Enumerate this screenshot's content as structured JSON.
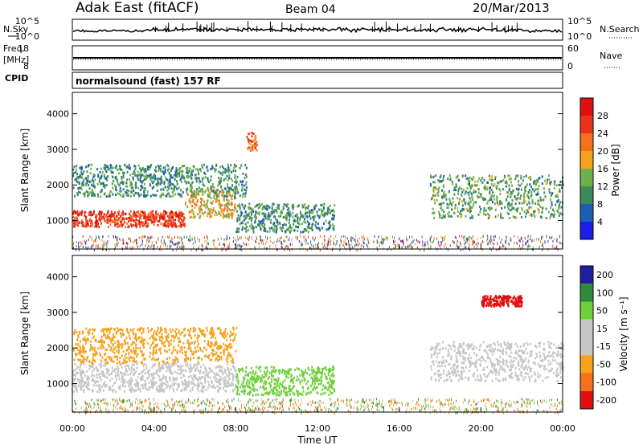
{
  "header": {
    "site": "Adak East (fitACF)",
    "beam": "Beam 04",
    "date": "20/Mar/2013"
  },
  "left_labels": {
    "nsky": "N.Sky",
    "freq": "Freq.",
    "freq_unit": "[MHz]",
    "cpid": "CPID"
  },
  "right_labels": {
    "nsearch": "N.Search",
    "nave": "Nave"
  },
  "noise_panel": {
    "left_top_tick": "10^5",
    "left_bottom_tick": "10^0",
    "right_top_tick": "10^5",
    "right_bottom_tick": "10^0"
  },
  "freq_panel": {
    "left_ticks": [
      "18",
      "8"
    ],
    "right_ticks": [
      "60",
      "0"
    ]
  },
  "cpid_text": "normalsound (fast) 157 RF",
  "colors": {
    "power": [
      "#1e1ee6",
      "#1c5fb0",
      "#3c8a5a",
      "#6fb04e",
      "#f5a21e",
      "#f5701e",
      "#e8321e",
      "#e01010"
    ],
    "velocity": [
      "#e01010",
      "#f5701e",
      "#f5a21e",
      "#c6c6c6",
      "#c6c6c6",
      "#6fcf3c",
      "#2f8a3a",
      "#1e1ea0"
    ]
  },
  "chart_data": [
    {
      "type": "heatmap",
      "name_hint": "power",
      "x": {
        "label": "",
        "ticks": [
          "00:00",
          "04:00",
          "08:00",
          "12:00",
          "16:00",
          "20:00",
          "00:00"
        ],
        "range": [
          0,
          24
        ],
        "unit": "hours UT"
      },
      "y": {
        "label": "Slant Range [km]",
        "ticks": [
          "1000",
          "2000",
          "3000",
          "4000"
        ],
        "range": [
          200,
          4600
        ]
      },
      "colorbar": {
        "label": "Power [dB]",
        "ticks": [
          "4",
          "8",
          "12",
          "16",
          "20",
          "24",
          "28"
        ],
        "range": [
          0,
          32
        ]
      },
      "features": [
        {
          "t": [
            0.0,
            5.5
          ],
          "range": [
            850,
            1300
          ],
          "level": 26
        },
        {
          "t": [
            5.5,
            8.0
          ],
          "range": [
            1100,
            1900
          ],
          "level": 18
        },
        {
          "t": [
            0.0,
            8.5
          ],
          "range": [
            1700,
            2600
          ],
          "level": 10
        },
        {
          "t": [
            8.0,
            12.8
          ],
          "range": [
            700,
            1500
          ],
          "level": 10
        },
        {
          "t": [
            17.5,
            24.0
          ],
          "range": [
            1100,
            2300
          ],
          "level": 12
        },
        {
          "t": [
            8.5,
            9.0
          ],
          "range": [
            3000,
            3500
          ],
          "level": 22
        }
      ]
    },
    {
      "type": "heatmap",
      "name_hint": "velocity",
      "x": {
        "label": "Time UT",
        "ticks": [
          "00:00",
          "04:00",
          "08:00",
          "12:00",
          "16:00",
          "20:00",
          "00:00"
        ],
        "range": [
          0,
          24
        ],
        "unit": "hours UT"
      },
      "y": {
        "label": "Slant Range [km]",
        "ticks": [
          "1000",
          "2000",
          "3000",
          "4000"
        ],
        "range": [
          200,
          4600
        ]
      },
      "colorbar": {
        "label": "Velocity [m s⁻¹]",
        "ticks": [
          "200",
          "100",
          "50",
          "15",
          "-15",
          "-50",
          "-100",
          "-200"
        ]
      },
      "features": [
        {
          "t": [
            0.0,
            8.0
          ],
          "range": [
            800,
            1600
          ],
          "velocity": 0
        },
        {
          "t": [
            0.0,
            8.0
          ],
          "range": [
            1600,
            2600
          ],
          "velocity": -40
        },
        {
          "t": [
            8.0,
            12.8
          ],
          "range": [
            700,
            1500
          ],
          "velocity": 40
        },
        {
          "t": [
            17.5,
            24.0
          ],
          "range": [
            1100,
            2200
          ],
          "velocity": 0
        },
        {
          "t": [
            20.0,
            22.0
          ],
          "range": [
            3200,
            3500
          ],
          "velocity": -200
        }
      ]
    }
  ]
}
